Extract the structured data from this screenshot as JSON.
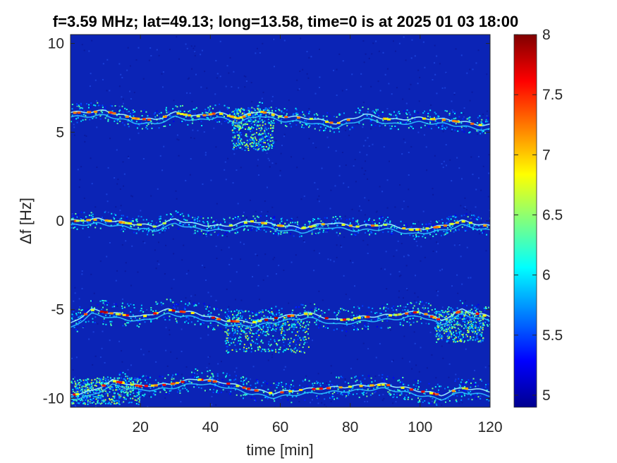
{
  "chart_data": {
    "type": "heatmap",
    "title": "f=3.59 MHz;  lat=49.13; long=13.58, time=0 is at 2025 01 03 18:00",
    "xlabel": "time [min]",
    "ylabel": "Δf [Hz]",
    "xlim": [
      0,
      120
    ],
    "ylim": [
      -10.5,
      10.5
    ],
    "x_ticks": [
      20,
      40,
      60,
      80,
      100,
      120
    ],
    "y_ticks": [
      10,
      5,
      0,
      -5,
      -10
    ],
    "x_tick_labels": [
      "20",
      "40",
      "60",
      "80",
      "100",
      "120"
    ],
    "y_tick_labels": [
      "10",
      "5",
      "0",
      "-5",
      "-10"
    ],
    "colorbar": {
      "range": [
        4.9,
        8
      ],
      "ticks": [
        5,
        5.5,
        6,
        6.5,
        7,
        7.5,
        8
      ],
      "tick_labels": [
        "5",
        "5.5",
        "6",
        "6.5",
        "7",
        "7.5",
        "8"
      ],
      "colormap": "jet"
    },
    "background_value": 4.9,
    "traces": [
      {
        "name": "",
        "base_df": 6.0,
        "strength": 0.6,
        "points": [
          [
            0,
            6.1
          ],
          [
            10,
            6.2
          ],
          [
            18,
            5.8
          ],
          [
            24,
            5.7
          ],
          [
            30,
            6.1
          ],
          [
            36,
            5.9
          ],
          [
            42,
            6.1
          ],
          [
            48,
            5.8
          ],
          [
            54,
            6.2
          ],
          [
            60,
            5.9
          ],
          [
            68,
            5.8
          ],
          [
            76,
            5.5
          ],
          [
            84,
            6.0
          ],
          [
            92,
            5.7
          ],
          [
            100,
            5.8
          ],
          [
            108,
            5.7
          ],
          [
            118,
            5.4
          ]
        ]
      },
      {
        "name": "",
        "base_df": 0.0,
        "strength": 0.5,
        "points": [
          [
            0,
            0.0
          ],
          [
            8,
            0.1
          ],
          [
            16,
            -0.1
          ],
          [
            24,
            -0.3
          ],
          [
            30,
            0.1
          ],
          [
            36,
            -0.2
          ],
          [
            44,
            -0.3
          ],
          [
            52,
            0.0
          ],
          [
            58,
            -0.2
          ],
          [
            66,
            -0.4
          ],
          [
            74,
            -0.1
          ],
          [
            82,
            -0.3
          ],
          [
            90,
            -0.2
          ],
          [
            98,
            -0.5
          ],
          [
            106,
            -0.3
          ],
          [
            112,
            0.0
          ],
          [
            120,
            -0.3
          ]
        ]
      },
      {
        "name": "",
        "base_df": -5.2,
        "strength": 0.9,
        "points": [
          [
            0,
            -5.8
          ],
          [
            6,
            -5.0
          ],
          [
            12,
            -5.2
          ],
          [
            20,
            -5.4
          ],
          [
            28,
            -5.0
          ],
          [
            36,
            -5.2
          ],
          [
            44,
            -5.6
          ],
          [
            52,
            -5.7
          ],
          [
            60,
            -5.4
          ],
          [
            68,
            -5.2
          ],
          [
            76,
            -5.6
          ],
          [
            84,
            -5.4
          ],
          [
            92,
            -5.3
          ],
          [
            100,
            -5.1
          ],
          [
            106,
            -5.6
          ],
          [
            112,
            -5.0
          ],
          [
            120,
            -5.4
          ]
        ]
      },
      {
        "name": "",
        "base_df": -9.4,
        "strength": 0.8,
        "points": [
          [
            0,
            -9.8
          ],
          [
            6,
            -9.6
          ],
          [
            12,
            -9.0
          ],
          [
            20,
            -9.3
          ],
          [
            28,
            -9.2
          ],
          [
            36,
            -8.9
          ],
          [
            44,
            -9.1
          ],
          [
            52,
            -9.5
          ],
          [
            58,
            -9.7
          ],
          [
            66,
            -9.5
          ],
          [
            74,
            -9.4
          ],
          [
            82,
            -9.3
          ],
          [
            90,
            -9.2
          ],
          [
            98,
            -9.5
          ],
          [
            106,
            -9.8
          ],
          [
            112,
            -9.4
          ],
          [
            120,
            -9.6
          ]
        ]
      }
    ],
    "spread_regions": [
      {
        "x": [
          46,
          58
        ],
        "df": [
          4.0,
          6.4
        ]
      },
      {
        "x": [
          44,
          68
        ],
        "df": [
          -7.4,
          -5.0
        ]
      },
      {
        "x": [
          104,
          118
        ],
        "df": [
          -6.8,
          -5.0
        ]
      },
      {
        "x": [
          0,
          20
        ],
        "df": [
          -10.3,
          -8.8
        ]
      }
    ]
  }
}
